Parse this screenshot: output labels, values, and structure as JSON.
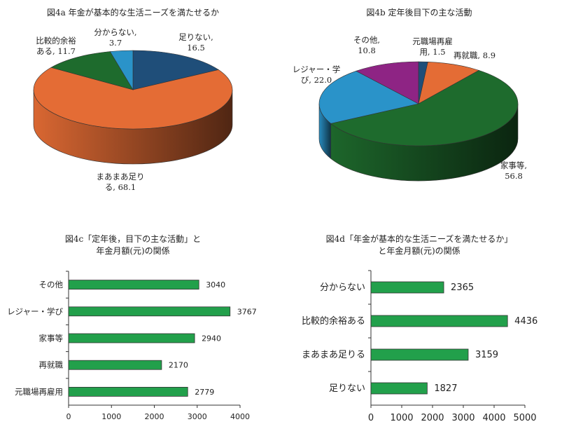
{
  "chart_data": [
    {
      "id": "4a",
      "type": "pie",
      "title": "図4a 年金が基本的な生活ニーズを満たせるか",
      "slices": [
        {
          "label_lines": [
            "足りない,",
            "16.5"
          ],
          "value": 16.5,
          "color": "#1f4e79"
        },
        {
          "label_lines": [
            "まあまあ足り",
            "る, 68.1"
          ],
          "value": 68.1,
          "color": "#e46c35"
        },
        {
          "label_lines": [
            "比較的余裕",
            "ある, 11.7"
          ],
          "value": 11.7,
          "color": "#1e6b2d"
        },
        {
          "label_lines": [
            "分からない,",
            "3.7"
          ],
          "value": 3.7,
          "color": "#2a93c9"
        }
      ]
    },
    {
      "id": "4b",
      "type": "pie",
      "title": "図4b 定年後目下の主な活動",
      "slices": [
        {
          "label_lines": [
            "元職場再雇",
            "用, 1.5"
          ],
          "value": 1.5,
          "color": "#1f4e79"
        },
        {
          "label_lines": [
            "再就職, 8.9"
          ],
          "value": 8.9,
          "color": "#e46c35"
        },
        {
          "label_lines": [
            "家事等,",
            "56.8"
          ],
          "value": 56.8,
          "color": "#1e6b2d"
        },
        {
          "label_lines": [
            "レジャー・学",
            "び, 22.0"
          ],
          "value": 22.0,
          "color": "#2a93c9"
        },
        {
          "label_lines": [
            "その他,",
            "10.8"
          ],
          "value": 10.8,
          "color": "#8e2484"
        }
      ]
    },
    {
      "id": "4c",
      "type": "bar",
      "title_lines": [
        "図4c「定年後，目下の主な活動」と",
        "年金月額(元)の関係"
      ],
      "categories": [
        "その他",
        "レジャー・学び",
        "家事等",
        "再就職",
        "元職場再雇用"
      ],
      "values": [
        3040,
        3767,
        2940,
        2170,
        2779
      ],
      "xlim": [
        0,
        4000
      ],
      "ticks": [
        0,
        1000,
        2000,
        3000,
        4000
      ],
      "color": "#22a04b"
    },
    {
      "id": "4d",
      "type": "bar",
      "title_lines": [
        "図4d「年金が基本的な生活ニーズを満たせるか」",
        "と年金月額(元)の関係"
      ],
      "categories": [
        "分からない",
        "比較的余裕ある",
        "まあまあ足りる",
        "足りない"
      ],
      "values": [
        2365,
        4436,
        3159,
        1827
      ],
      "xlim": [
        0,
        5000
      ],
      "ticks": [
        0,
        1000,
        2000,
        3000,
        4000,
        5000
      ],
      "color": "#22a04b"
    }
  ]
}
